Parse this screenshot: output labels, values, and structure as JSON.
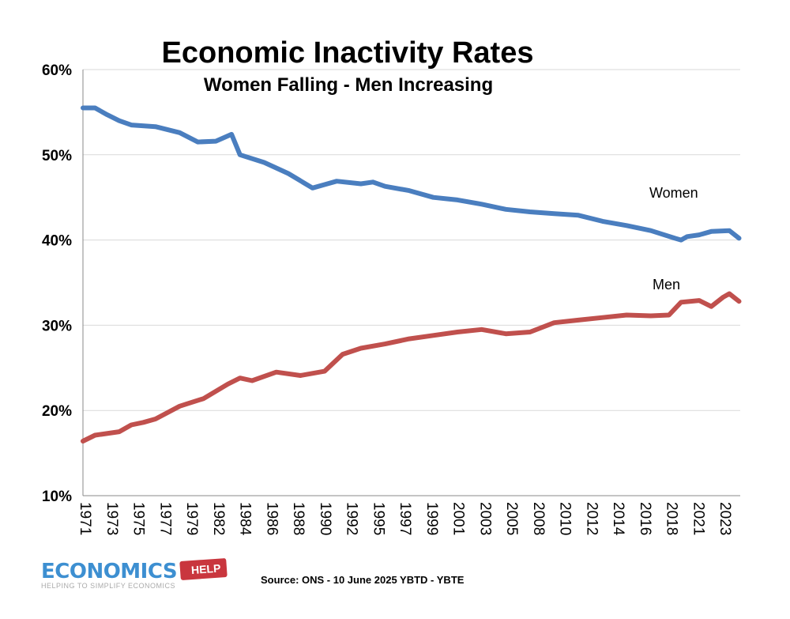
{
  "chart_data": {
    "type": "line",
    "title": "Economic Inactivity Rates",
    "subtitle": "Women Falling - Men Increasing",
    "xlabel": "",
    "ylabel": "",
    "ylim": [
      10,
      60
    ],
    "xlim": [
      1971,
      2025.4
    ],
    "yticks": [
      "10%",
      "20%",
      "30%",
      "40%",
      "50%",
      "60%"
    ],
    "ytick_values": [
      10,
      20,
      30,
      40,
      50,
      60
    ],
    "xtick_labels": [
      "1971",
      "1973",
      "1975",
      "1977",
      "1979",
      "1982",
      "1984",
      "1986",
      "1988",
      "1990",
      "1992",
      "1995",
      "1997",
      "1999",
      "2001",
      "2003",
      "2005",
      "2008",
      "2010",
      "2012",
      "2014",
      "2016",
      "2018",
      "2021",
      "2023"
    ],
    "grid": "horizontal",
    "series": [
      {
        "name": "Women",
        "color": "#4a7ebf",
        "x": [
          1971,
          1972,
          1973,
          1974,
          1975,
          1977,
          1979,
          1980.5,
          1982,
          1983.3,
          1984,
          1986,
          1988,
          1990,
          1991,
          1992,
          1994,
          1995,
          1996,
          1998,
          2000,
          2002,
          2004,
          2006,
          2008,
          2010,
          2012,
          2014,
          2016,
          2018,
          2020,
          2020.5,
          2021,
          2022,
          2023,
          2024.5,
          2025.3
        ],
        "y": [
          55.5,
          55.5,
          54.7,
          54,
          53.5,
          53.3,
          52.6,
          51.5,
          51.6,
          52.4,
          50,
          49.1,
          47.8,
          46.1,
          46.5,
          46.9,
          46.6,
          46.8,
          46.3,
          45.8,
          45,
          44.7,
          44.2,
          43.6,
          43.3,
          43.1,
          42.9,
          42.2,
          41.7,
          41.1,
          40.2,
          40,
          40.4,
          40.6,
          41,
          41.1,
          40.2
        ]
      },
      {
        "name": "Men",
        "color": "#c0504d",
        "x": [
          1971,
          1972,
          1974,
          1975,
          1976,
          1977,
          1979,
          1981,
          1983,
          1984,
          1985,
          1987,
          1989,
          1991,
          1992.5,
          1994,
          1996,
          1998,
          2000,
          2002,
          2004,
          2006,
          2008,
          2010,
          2012,
          2014,
          2016,
          2018,
          2019.5,
          2020.5,
          2022,
          2023,
          2024,
          2024.5,
          2025.3
        ],
        "y": [
          16.4,
          17.1,
          17.5,
          18.3,
          18.6,
          19,
          20.5,
          21.4,
          23.1,
          23.8,
          23.5,
          24.5,
          24.1,
          24.6,
          26.6,
          27.3,
          27.8,
          28.4,
          28.8,
          29.2,
          29.5,
          29,
          29.2,
          30.3,
          30.6,
          30.9,
          31.2,
          31.1,
          31.2,
          32.7,
          32.9,
          32.2,
          33.3,
          33.7,
          32.8
        ]
      }
    ],
    "annotations": [
      {
        "text": "Women",
        "series": "Women"
      },
      {
        "text": "Men",
        "series": "Men"
      }
    ],
    "source": "Source: ONS - 10 June 2025 YBTD - YBTE"
  },
  "logo": {
    "main": "ECONOMICS",
    "tag": "HELP",
    "tagline": "HELPING TO SIMPLIFY ECONOMICS"
  }
}
